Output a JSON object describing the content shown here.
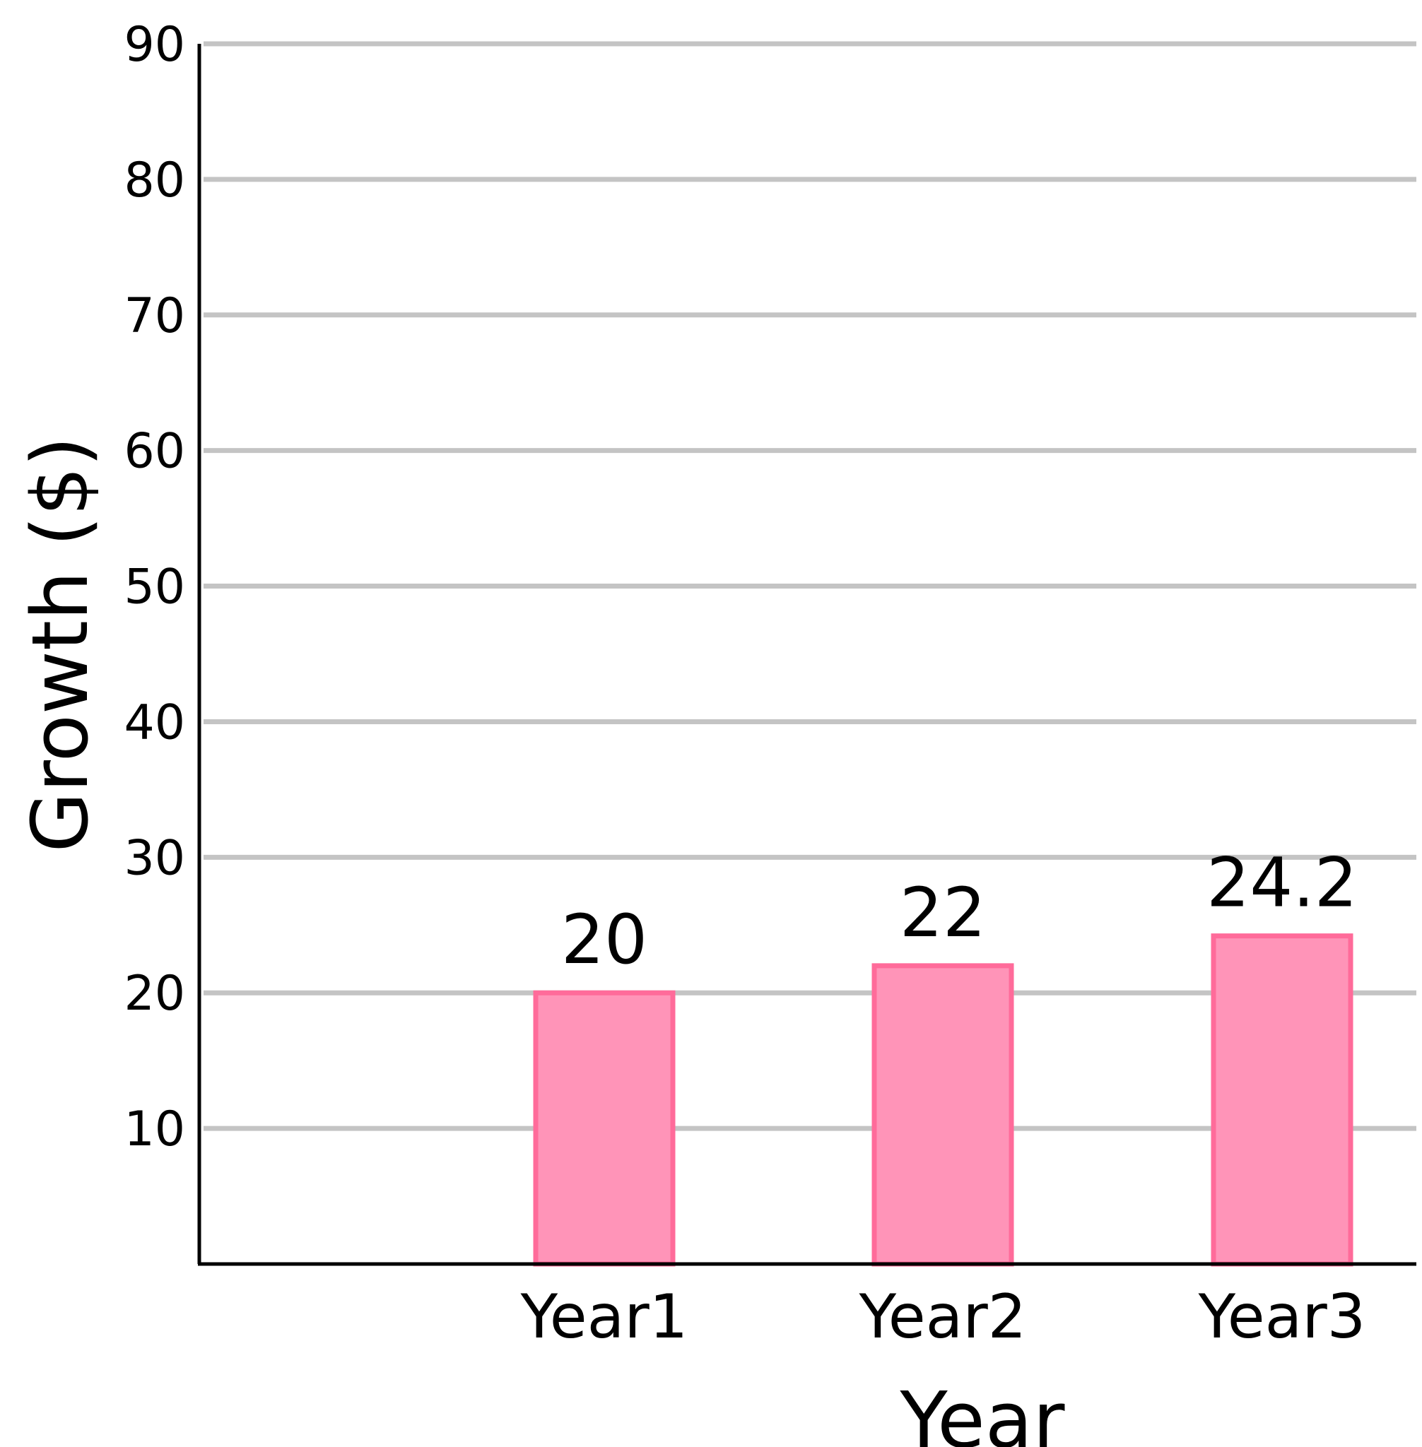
{
  "chart_data": {
    "type": "bar",
    "title": "",
    "xlabel": "Year",
    "ylabel": "Growth ($)",
    "categories": [
      "Year1",
      "Year2",
      "Year3"
    ],
    "values": [
      20,
      22,
      24.2
    ],
    "value_labels": [
      "20",
      "22",
      "24.2"
    ],
    "ylim": [
      0,
      90
    ],
    "yticks": [
      10,
      20,
      30,
      40,
      50,
      60,
      70,
      80,
      90
    ],
    "grid": true,
    "legend": "none",
    "colors": {
      "bar_fill": "#ff94b8",
      "bar_stroke": "#ff6b9a",
      "gridline": "#c4c4c4",
      "axis": "#000000"
    }
  }
}
